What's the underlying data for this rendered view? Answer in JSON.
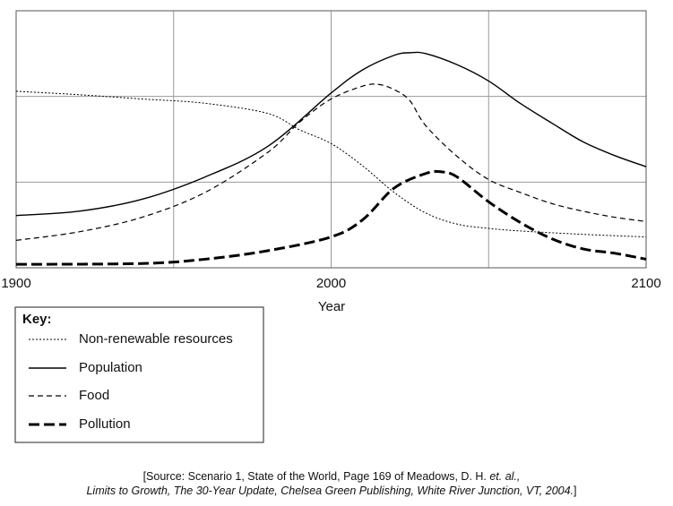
{
  "chart_data": {
    "type": "line",
    "x_label": "Year",
    "xlim": [
      1900,
      2100
    ],
    "xticks": [
      1900,
      2000,
      2100
    ],
    "xminor": [
      1950,
      2050
    ],
    "ylim": [
      0,
      3
    ],
    "yticks": [
      0,
      1,
      2,
      3
    ],
    "grid": true,
    "legend_title": "Key:",
    "series": [
      {
        "name": "Non-renewable resources",
        "color": "#000000",
        "style": "dotted",
        "x": [
          1900,
          1920,
          1940,
          1960,
          1980,
          1990,
          2000,
          2010,
          2020,
          2030,
          2040,
          2050,
          2060,
          2080,
          2100
        ],
        "values": [
          2.06,
          2.02,
          1.97,
          1.92,
          1.8,
          1.61,
          1.45,
          1.19,
          0.88,
          0.64,
          0.51,
          0.46,
          0.43,
          0.39,
          0.36
        ]
      },
      {
        "name": "Population",
        "color": "#000000",
        "style": "solid",
        "x": [
          1900,
          1920,
          1940,
          1960,
          1980,
          2000,
          2010,
          2020,
          2025,
          2030,
          2040,
          2050,
          2060,
          2070,
          2080,
          2090,
          2100
        ],
        "values": [
          0.61,
          0.66,
          0.8,
          1.06,
          1.42,
          2.04,
          2.31,
          2.48,
          2.51,
          2.5,
          2.37,
          2.18,
          1.92,
          1.69,
          1.47,
          1.31,
          1.18
        ]
      },
      {
        "name": "Food",
        "color": "#000000",
        "style": "dashed",
        "x": [
          1900,
          1920,
          1940,
          1960,
          1980,
          1990,
          2000,
          2010,
          2015,
          2020,
          2025,
          2030,
          2040,
          2050,
          2060,
          2070,
          2080,
          2090,
          2100
        ],
        "values": [
          0.32,
          0.42,
          0.59,
          0.88,
          1.35,
          1.7,
          1.97,
          2.12,
          2.14,
          2.08,
          1.95,
          1.66,
          1.3,
          1.03,
          0.88,
          0.75,
          0.66,
          0.59,
          0.54
        ]
      },
      {
        "name": "Pollution",
        "color": "#000000",
        "style": "heavy-dashed",
        "x": [
          1900,
          1940,
          1960,
          1980,
          2000,
          2010,
          2020,
          2030,
          2035,
          2040,
          2050,
          2060,
          2070,
          2080,
          2090,
          2100
        ],
        "values": [
          0.04,
          0.05,
          0.1,
          0.2,
          0.36,
          0.56,
          0.93,
          1.1,
          1.12,
          1.06,
          0.77,
          0.53,
          0.34,
          0.22,
          0.17,
          0.1
        ]
      }
    ],
    "source": {
      "line1": [
        "[Source: Scenario 1, State of the World, Page 169 of Meadows, D. H. ",
        "et. al.,"
      ],
      "line2": [
        "Limits to Growth, The 30-Year Update, Chelsea Green Publishing, White River Junction, VT, 2004.",
        "]"
      ]
    }
  }
}
